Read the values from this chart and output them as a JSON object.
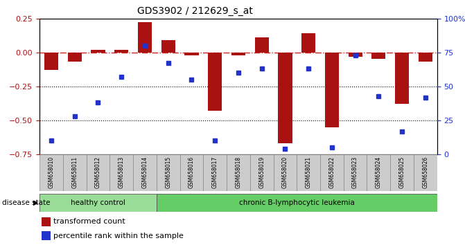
{
  "title": "GDS3902 / 212629_s_at",
  "samples": [
    "GSM658010",
    "GSM658011",
    "GSM658012",
    "GSM658013",
    "GSM658014",
    "GSM658015",
    "GSM658016",
    "GSM658017",
    "GSM658018",
    "GSM658019",
    "GSM658020",
    "GSM658021",
    "GSM658022",
    "GSM658023",
    "GSM658024",
    "GSM658025",
    "GSM658026"
  ],
  "bar_values": [
    -0.13,
    -0.07,
    0.02,
    0.02,
    0.22,
    0.09,
    -0.02,
    -0.43,
    -0.02,
    0.11,
    -0.67,
    0.14,
    -0.55,
    -0.03,
    -0.05,
    -0.38,
    -0.07
  ],
  "dot_values": [
    10,
    28,
    38,
    57,
    80,
    67,
    55,
    10,
    60,
    63,
    4,
    63,
    5,
    73,
    43,
    17,
    42
  ],
  "healthy_count": 5,
  "bar_color": "#aa1111",
  "dot_color": "#2233cc",
  "dashed_line_color": "#cc2222",
  "background_plot": "#ffffff",
  "background_label": "#cccccc",
  "healthy_color": "#99dd99",
  "leukemia_color": "#66cc66",
  "ylim_left": [
    -0.75,
    0.25
  ],
  "ylim_right": [
    0,
    100
  ],
  "left_ticks": [
    -0.75,
    -0.5,
    -0.25,
    0,
    0.25
  ],
  "right_ticks": [
    0,
    25,
    50,
    75,
    100
  ],
  "right_tick_labels": [
    "0",
    "25",
    "50",
    "75",
    "100%"
  ],
  "legend_bar": "transformed count",
  "legend_dot": "percentile rank within the sample",
  "disease_state_label": "disease state",
  "healthy_label": "healthy control",
  "leukemia_label": "chronic B-lymphocytic leukemia"
}
